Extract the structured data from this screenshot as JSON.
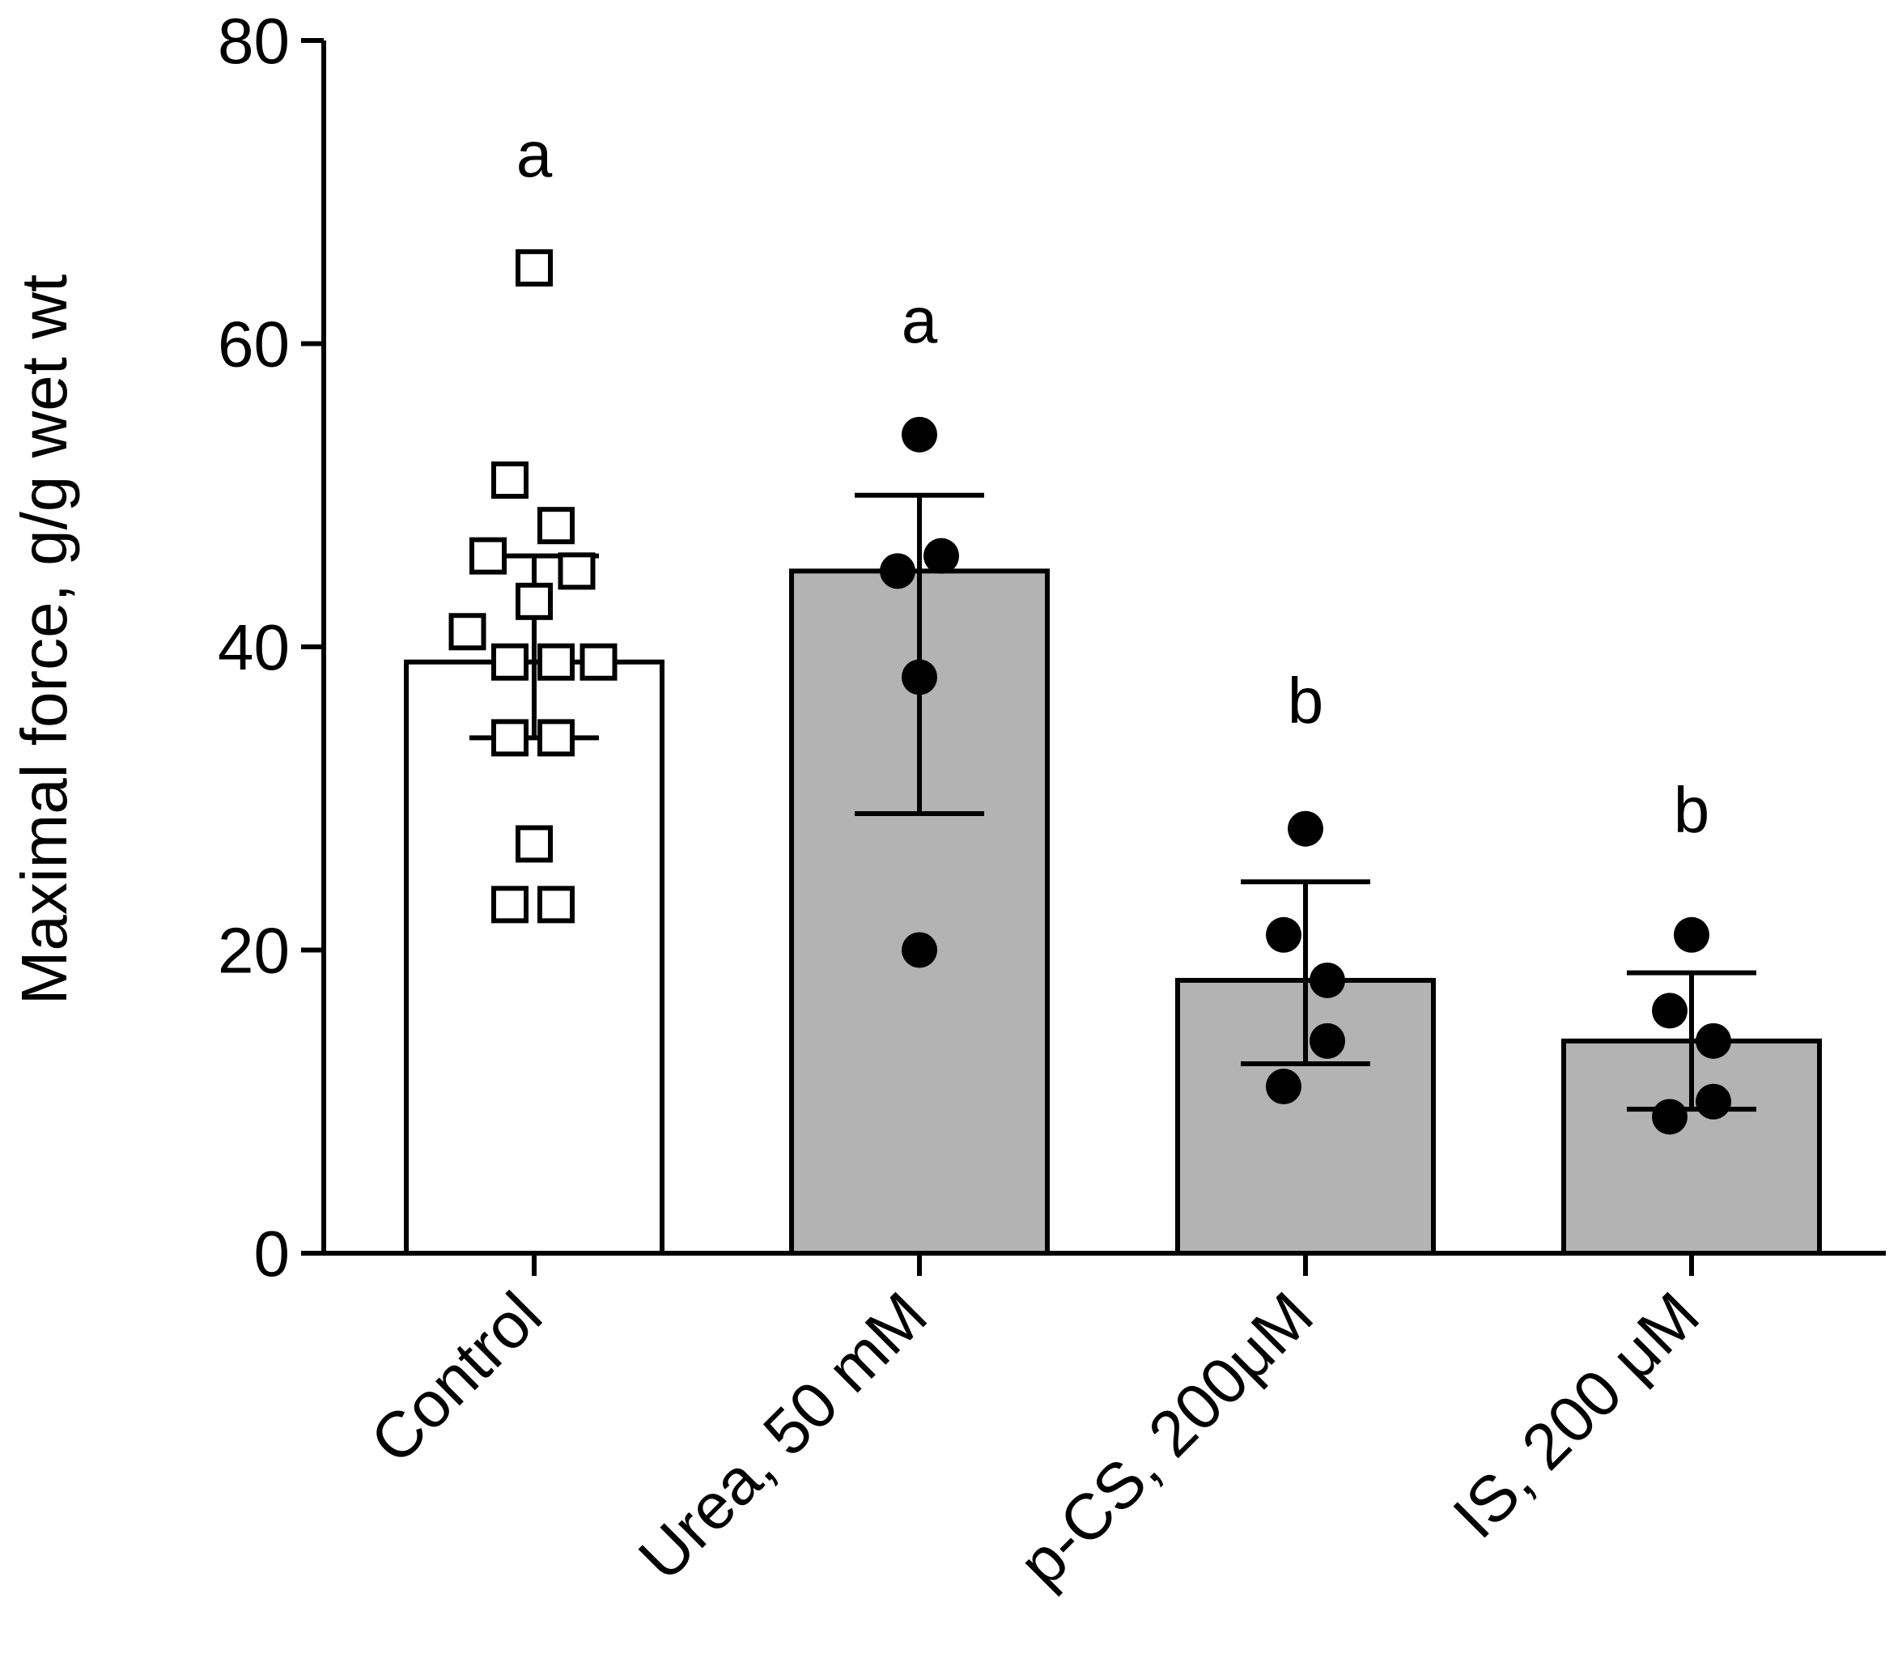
{
  "chart_data": {
    "type": "bar",
    "title": "",
    "xlabel": "",
    "ylabel": "Maximal  force, g/g wet wt",
    "ylim": [
      0,
      80
    ],
    "yticks": [
      0,
      20,
      40,
      60,
      80
    ],
    "categories": [
      "Control",
      "Urea, 50 mM",
      "p-CS, 200μM",
      "IS, 200 μM"
    ],
    "values": [
      39,
      45,
      18,
      14
    ],
    "error": [
      {
        "low": 34,
        "high": 46
      },
      {
        "low": 29,
        "high": 50
      },
      {
        "low": 12.5,
        "high": 24.5
      },
      {
        "low": 9.5,
        "high": 18.5
      }
    ],
    "significance": [
      "a",
      "a",
      "b",
      "b"
    ],
    "bar_colors": [
      "#ffffff",
      "#b3b3b3",
      "#b3b3b3",
      "#b3b3b3"
    ],
    "marker_style": [
      "open-square",
      "filled-circle",
      "filled-circle",
      "filled-circle"
    ],
    "points": [
      [
        {
          "dx": 0,
          "y": 65
        },
        {
          "dx": -0.2,
          "y": 51
        },
        {
          "dx": 0.18,
          "y": 48
        },
        {
          "dx": -0.38,
          "y": 46
        },
        {
          "dx": 0.35,
          "y": 45
        },
        {
          "dx": 0,
          "y": 43
        },
        {
          "dx": -0.55,
          "y": 41
        },
        {
          "dx": -0.2,
          "y": 39
        },
        {
          "dx": 0.18,
          "y": 39
        },
        {
          "dx": 0.53,
          "y": 39
        },
        {
          "dx": -0.2,
          "y": 34
        },
        {
          "dx": 0.18,
          "y": 34
        },
        {
          "dx": 0,
          "y": 27
        },
        {
          "dx": -0.2,
          "y": 23
        },
        {
          "dx": 0.18,
          "y": 23
        }
      ],
      [
        {
          "dx": 0,
          "y": 54
        },
        {
          "dx": 0.18,
          "y": 46
        },
        {
          "dx": -0.18,
          "y": 45
        },
        {
          "dx": 0,
          "y": 38
        },
        {
          "dx": 0,
          "y": 20
        }
      ],
      [
        {
          "dx": 0,
          "y": 28
        },
        {
          "dx": -0.18,
          "y": 21
        },
        {
          "dx": 0.18,
          "y": 18
        },
        {
          "dx": 0.18,
          "y": 14
        },
        {
          "dx": -0.18,
          "y": 11
        }
      ],
      [
        {
          "dx": 0,
          "y": 21
        },
        {
          "dx": -0.18,
          "y": 16
        },
        {
          "dx": 0.18,
          "y": 14
        },
        {
          "dx": -0.18,
          "y": 9
        },
        {
          "dx": 0.18,
          "y": 10
        }
      ]
    ]
  }
}
